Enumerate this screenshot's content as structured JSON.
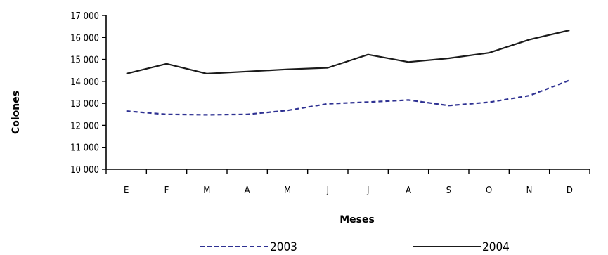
{
  "chart_data": {
    "type": "line",
    "title": "",
    "xlabel": "Meses",
    "ylabel": "Colones",
    "categories": [
      "E",
      "F",
      "M",
      "A",
      "M",
      "J",
      "J",
      "A",
      "S",
      "O",
      "N",
      "D"
    ],
    "ylim": [
      10000,
      17000
    ],
    "yticks": [
      "10 000",
      "11 000",
      "12 000",
      "13 000",
      "14 000",
      "15 000",
      "16 000",
      "17 000"
    ],
    "grid": false,
    "legend_position": "bottom",
    "series": [
      {
        "name": "2003",
        "style": "dashed",
        "color": "#2e3192",
        "values": [
          12650,
          12500,
          12480,
          12500,
          12680,
          12980,
          13060,
          13150,
          12900,
          13050,
          13350,
          14050
        ]
      },
      {
        "name": "2004",
        "style": "solid",
        "color": "#1a1a1a",
        "values": [
          14350,
          14800,
          14350,
          14450,
          14550,
          14620,
          15220,
          14880,
          15050,
          15300,
          15900,
          16330
        ]
      }
    ]
  }
}
